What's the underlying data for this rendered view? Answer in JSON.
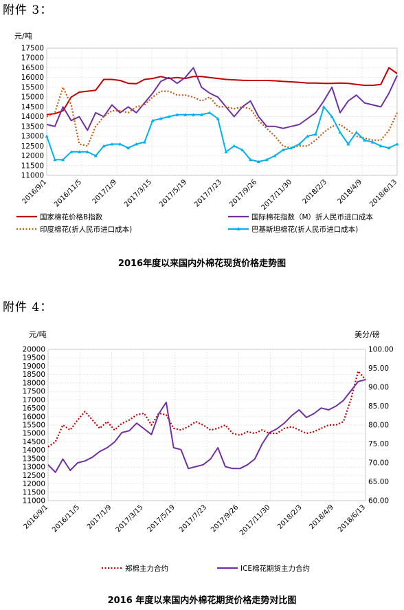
{
  "attachment3": {
    "label": "附件 3：",
    "unit": "元/吨",
    "title": "2016年度以来国内外棉花现货价格走势图"
  },
  "attachment4": {
    "label": "附件 4：",
    "unit_left": "元/吨",
    "unit_right": "美分/磅",
    "title": "2016 年度以来国内外棉花期货价格走势对比图"
  },
  "chart_data": [
    {
      "type": "line",
      "title": "2016年度以来国内外棉花现货价格走势图",
      "ylabel": "元/吨",
      "ylim": [
        11000,
        17500
      ],
      "yticks": [
        11000,
        11500,
        12000,
        12500,
        13000,
        13500,
        14000,
        14500,
        15000,
        15500,
        16000,
        16500,
        17000,
        17500
      ],
      "xlabels": [
        "2016/9/1",
        "2016/11/5",
        "2017/1/9",
        "2017/3/15",
        "2017/5/19",
        "2017/7/23",
        "2017/9/26",
        "2017/11/30",
        "2018/2/3",
        "2018/4/9",
        "2018/6/13"
      ],
      "grid": true,
      "legend_position": "bottom",
      "series": [
        {
          "name": "国家棉花价格B指数",
          "color": "#c00000",
          "style": "solid",
          "values": [
            14100,
            14150,
            14300,
            15000,
            15250,
            15300,
            15350,
            15900,
            15900,
            15850,
            15700,
            15680,
            15900,
            15950,
            16050,
            15950,
            16000,
            15950,
            16050,
            16050,
            16000,
            15950,
            15900,
            15880,
            15860,
            15850,
            15850,
            15850,
            15830,
            15800,
            15780,
            15750,
            15720,
            15720,
            15700,
            15700,
            15720,
            15700,
            15650,
            15600,
            15600,
            15650,
            16500,
            16200
          ]
        },
        {
          "name": "国际棉花指数（M）折人民币进口成本",
          "color": "#7030a0",
          "style": "solid",
          "values": [
            13600,
            13500,
            14500,
            13800,
            14000,
            13300,
            14200,
            14000,
            14600,
            14200,
            14500,
            14200,
            14700,
            15200,
            15800,
            16000,
            15700,
            16000,
            16500,
            15500,
            15200,
            15000,
            14500,
            14000,
            14500,
            14800,
            14000,
            13500,
            13500,
            13400,
            13500,
            13600,
            13900,
            14200,
            14800,
            15500,
            14200,
            14800,
            15100,
            14700,
            14600,
            14500,
            15200,
            16100
          ]
        },
        {
          "name": "印度棉花(折人民币进口成本)",
          "color": "#c55a11",
          "style": "dotted",
          "values": [
            14000,
            14200,
            15500,
            14600,
            12600,
            12500,
            13500,
            14000,
            14300,
            14300,
            14200,
            14500,
            14600,
            15000,
            15300,
            15300,
            15100,
            15100,
            15000,
            14800,
            15000,
            14500,
            14500,
            14400,
            14500,
            14400,
            13800,
            13400,
            13000,
            12500,
            12400,
            12500,
            12500,
            12800,
            13200,
            13500,
            13600,
            13300,
            13000,
            12900,
            12800,
            12800,
            13300,
            14200
          ]
        },
        {
          "name": "巴基斯坦棉花(折人民币进口成本)",
          "color": "#00b0f0",
          "style": "solid-triangle",
          "values": [
            13000,
            11800,
            11800,
            12200,
            12200,
            12200,
            12000,
            12500,
            12600,
            12600,
            12400,
            12600,
            12700,
            13800,
            13900,
            14000,
            14100,
            14100,
            14100,
            14100,
            14200,
            13900,
            12200,
            12500,
            12300,
            11800,
            11700,
            11800,
            12000,
            12300,
            12400,
            12600,
            13000,
            13100,
            14500,
            14000,
            13200,
            12600,
            13200,
            12800,
            12700,
            12500,
            12400,
            12600
          ]
        }
      ]
    },
    {
      "type": "line",
      "title": "2016 年度以来国内外棉花期货价格走势对比图",
      "ylabel": "元/吨",
      "y2label": "美分/磅",
      "ylim": [
        11000,
        20000
      ],
      "y2lim": [
        60,
        100
      ],
      "yticks": [
        11000,
        11500,
        12000,
        12500,
        13000,
        13500,
        14000,
        14500,
        15000,
        15500,
        16000,
        16500,
        17000,
        17500,
        18000,
        18500,
        19000,
        19500,
        20000
      ],
      "y2ticks": [
        "60.00",
        "65.00",
        "70.00",
        "75.00",
        "80.00",
        "85.00",
        "90.00",
        "95.00",
        "100.00"
      ],
      "xlabels": [
        "2016/9/1",
        "2016/11/5",
        "2017/1/9",
        "2017/3/15",
        "2017/5/19",
        "2017/7/23",
        "2017/9/26",
        "2017/11/30",
        "2018/2/3",
        "2018/4/9",
        "2018/6/13"
      ],
      "grid": true,
      "legend_position": "bottom",
      "series": [
        {
          "name": "郑棉主力合约",
          "axis": "left",
          "color": "#c00000",
          "style": "dotted",
          "values": [
            14200,
            14500,
            15500,
            15200,
            15800,
            16300,
            15800,
            15300,
            15700,
            15200,
            15600,
            15800,
            16100,
            16200,
            15500,
            16200,
            16100,
            15300,
            15200,
            15400,
            15700,
            15500,
            15200,
            15300,
            15500,
            15000,
            14900,
            15100,
            15000,
            15200,
            15000,
            15000,
            15300,
            15400,
            15200,
            15000,
            15100,
            15300,
            15500,
            15500,
            15700,
            17000,
            18700,
            18200
          ]
        },
        {
          "name": "ICE棉花期货主力合约",
          "axis": "right",
          "color": "#7030a0",
          "style": "solid",
          "values": [
            69.5,
            67.5,
            71.0,
            68.0,
            70.0,
            70.5,
            71.5,
            73.0,
            74.0,
            75.5,
            78.0,
            78.5,
            80.5,
            79.0,
            77.5,
            83.0,
            86.0,
            74.0,
            73.5,
            68.5,
            69.0,
            69.5,
            71.0,
            74.0,
            69.0,
            68.5,
            68.5,
            69.5,
            71.0,
            75.0,
            78.0,
            79.0,
            80.5,
            82.5,
            84.0,
            82.0,
            83.0,
            84.5,
            84.0,
            85.0,
            86.5,
            89.0,
            91.5,
            92.0
          ]
        }
      ]
    }
  ]
}
